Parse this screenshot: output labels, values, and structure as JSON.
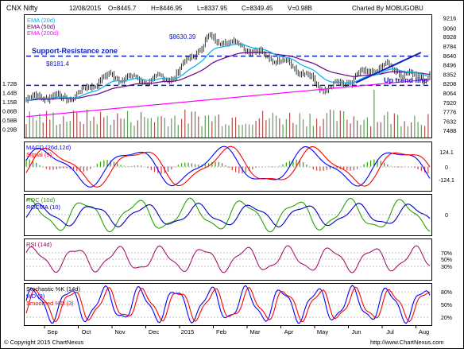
{
  "header": {
    "symbol": "CNX Nifty",
    "date": "12/08/2015",
    "open": "O=8445.7",
    "high": "H=8446.95",
    "low": "L=8337.95",
    "close": "C=8349.45",
    "volume": "V=0.98B",
    "credit": "Charted By MOBUGOBU"
  },
  "footer": {
    "copyright": "© Copyright 2015 ChartNexus",
    "url": "http://www.ChartNexus.com"
  },
  "colors": {
    "price": "#000000",
    "ema20": "#00b0f0",
    "ema50": "#6a0080",
    "ema200": "#ff00ff",
    "annotation": "#1020c0",
    "macd": "#0000ff",
    "signal": "#ff0000",
    "roc": "#2aa000",
    "rocma": "#0000c0",
    "rsi": "#a00060",
    "stochK": "#0000ff",
    "stochD": "#ff0000",
    "volume": "#b05050"
  },
  "chart_data": [
    {
      "panel": "price",
      "type": "bar",
      "legend": [
        "EMA (20d)",
        "EMA (50d)",
        "EMA (200d)"
      ],
      "legend_placement": "top-left",
      "y_ticks": [
        9216,
        9060,
        8928,
        8784,
        8640,
        8496,
        8352,
        8208,
        8064,
        7920,
        7776,
        7632,
        7488
      ],
      "ylim": [
        7380,
        9260
      ],
      "x_labels": [
        "Sep",
        "Oct",
        "Nov",
        "Dec",
        "2015",
        "Feb",
        "Mar",
        "Apr",
        "May",
        "Jun",
        "Jul",
        "Aug"
      ],
      "close_by_month": [
        {
          "month": "Sep",
          "close": 7950
        },
        {
          "month": "Oct",
          "close": 7950
        },
        {
          "month": "Nov",
          "close": 8330
        },
        {
          "month": "Dec",
          "close": 8200
        },
        {
          "month": "2015",
          "close": 8395
        },
        {
          "month": "Feb",
          "close": 8820
        },
        {
          "month": "Mar",
          "close": 8850
        },
        {
          "month": "Apr",
          "close": 8490
        },
        {
          "month": "May",
          "close": 8180
        },
        {
          "month": "Jun",
          "close": 8300
        },
        {
          "month": "Jul",
          "close": 8450
        },
        {
          "month": "Aug",
          "close": 8349
        }
      ],
      "levels": [
        {
          "label": "$8630.39",
          "value": 8630.39
        },
        {
          "label": "$8181.4",
          "value": 8181.4
        }
      ],
      "annotations": [
        "Support-Resistance zone",
        "Up trend line"
      ]
    },
    {
      "panel": "volume",
      "type": "bar",
      "y_ticks": [
        "1.72B",
        "1.44B",
        "1.15B",
        "0.86B",
        "0.58B",
        "0.29B"
      ]
    },
    {
      "panel": "macd",
      "type": "line",
      "legend": [
        "MACD (26d,12d)",
        "Signal (9)"
      ],
      "y_ticks": [
        124.1,
        0,
        -124.1
      ]
    },
    {
      "panel": "roc",
      "type": "line",
      "legend": [
        "ROC (10d)",
        "ROCMA (10)"
      ],
      "y_ticks": [
        0
      ]
    },
    {
      "panel": "rsi",
      "type": "line",
      "legend": [
        "RSI (14d)"
      ],
      "y_ticks": [
        "70%",
        "50%",
        "30%"
      ]
    },
    {
      "panel": "stochastic",
      "type": "line",
      "legend": [
        "Stochastic %K (14d)",
        "%D (3)",
        "Smoothed %D (3)"
      ],
      "y_ticks": [
        "80%",
        "50%",
        "20%"
      ]
    }
  ]
}
